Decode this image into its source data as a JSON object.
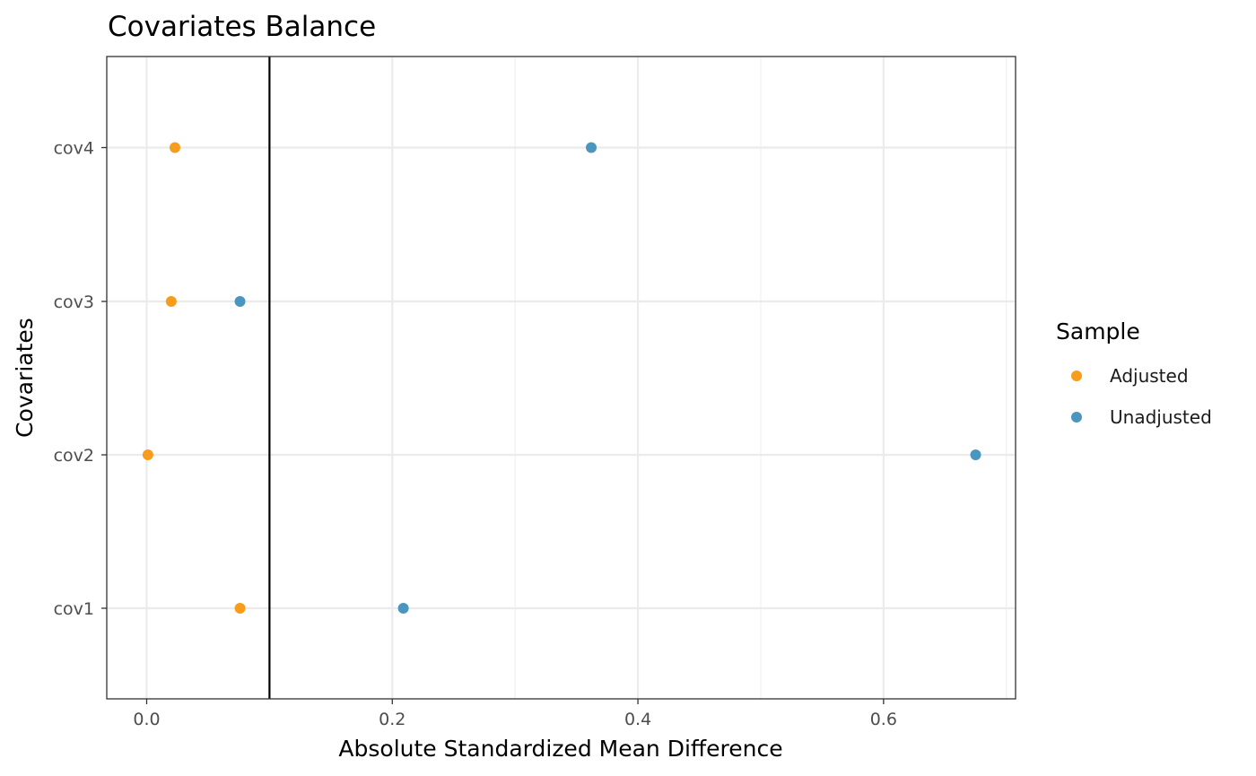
{
  "chart_data": {
    "type": "scatter",
    "title": "Covariates Balance",
    "xlabel": "Absolute Standardized Mean Difference",
    "ylabel": "Covariates",
    "categories": [
      "cov1",
      "cov2",
      "cov3",
      "cov4"
    ],
    "xlim": [
      -0.0325,
      0.7075
    ],
    "xticks": [
      0.0,
      0.2,
      0.4,
      0.6
    ],
    "xtick_labels": [
      "0.0",
      "0.2",
      "0.4",
      "0.6"
    ],
    "xminor": [
      0.1,
      0.3,
      0.5,
      0.7
    ],
    "threshold": 0.1,
    "grid": true,
    "legend": {
      "title": "Sample",
      "position": "right",
      "entries": [
        {
          "name": "Adjusted",
          "color": "#F89C1B"
        },
        {
          "name": "Unadjusted",
          "color": "#4A96BF"
        }
      ]
    },
    "series": [
      {
        "name": "Adjusted",
        "color": "#F89C1B",
        "points": [
          {
            "category": "cov1",
            "x": 0.076
          },
          {
            "category": "cov2",
            "x": 0.001
          },
          {
            "category": "cov3",
            "x": 0.02
          },
          {
            "category": "cov4",
            "x": 0.023
          }
        ]
      },
      {
        "name": "Unadjusted",
        "color": "#4A96BF",
        "points": [
          {
            "category": "cov1",
            "x": 0.209
          },
          {
            "category": "cov2",
            "x": 0.675
          },
          {
            "category": "cov3",
            "x": 0.076
          },
          {
            "category": "cov4",
            "x": 0.362
          }
        ]
      }
    ]
  }
}
